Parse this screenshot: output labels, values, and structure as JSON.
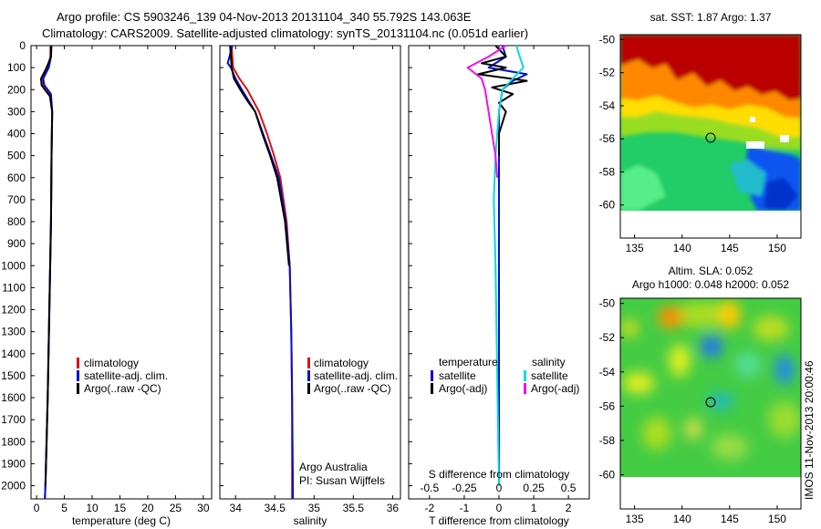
{
  "title_line1": "Argo profile: CS 5903246_139 04-Nov-2013 20131104_340 55.792S 143.063E",
  "title_line2": "Climatology: CARS2009. Satellite-adjusted climatology: synTS_20131104.nc (0.051d earlier)",
  "credit_line1": "Argo Australia",
  "credit_line2": "PI: Susan Wijffels",
  "side_stamp": "IMOS 11-Nov-2013 20:00:46",
  "colors": {
    "clim": "#dd1111",
    "sat": "#0011cc",
    "argo": "#000000",
    "sat_sal": "#00dddd",
    "argo_sal": "#ee11ee"
  },
  "chart_data": [
    {
      "type": "line",
      "xlabel": "temperature (deg C)",
      "ylabel": "",
      "xlim": [
        -1,
        31.5
      ],
      "ylim": [
        2060,
        0
      ],
      "xticks": [
        0,
        5,
        10,
        15,
        20,
        25,
        30
      ],
      "yticks": [
        0,
        100,
        200,
        300,
        400,
        500,
        600,
        700,
        800,
        900,
        1000,
        1100,
        1200,
        1300,
        1400,
        1500,
        1600,
        1700,
        1800,
        1900,
        2000
      ],
      "legend": [
        "climatology",
        "satellite-adj. clim.",
        "Argo(..raw -QC)"
      ],
      "legend_location": "center-right",
      "series": [
        {
          "name": "climatology",
          "color": "#dd1111",
          "depth": [
            0,
            50,
            100,
            150,
            180,
            220,
            300,
            500,
            800,
            1200,
            1600,
            2000,
            2060
          ],
          "values": [
            2.5,
            2.5,
            2.0,
            1.0,
            1.3,
            2.5,
            2.8,
            2.7,
            2.6,
            2.3,
            2.0,
            1.6,
            1.5
          ]
        },
        {
          "name": "satellite-adj. clim.",
          "color": "#0011cc",
          "depth": [
            0,
            50,
            100,
            150,
            180,
            220,
            300,
            500,
            800,
            1200,
            1600,
            2000,
            2060
          ],
          "values": [
            2.7,
            2.6,
            2.2,
            1.2,
            1.4,
            2.6,
            2.8,
            2.7,
            2.6,
            2.3,
            2.0,
            1.6,
            1.5
          ]
        },
        {
          "name": "Argo(..raw -QC)",
          "color": "#000000",
          "depth": [
            0,
            50,
            100,
            150,
            180,
            200,
            230,
            300,
            500,
            800,
            1200,
            1600,
            2000
          ],
          "values": [
            2.6,
            2.6,
            1.8,
            0.8,
            0.9,
            1.5,
            2.4,
            2.8,
            2.7,
            2.6,
            2.3,
            2.0,
            1.6
          ]
        }
      ]
    },
    {
      "type": "line",
      "xlabel": "salinity",
      "ylabel": "",
      "xlim": [
        33.8,
        36.1
      ],
      "ylim": [
        2060,
        0
      ],
      "xticks": [
        34,
        34.5,
        35,
        35.5,
        36
      ],
      "legend": [
        "climatology",
        "satellite-adj. clim.",
        "Argo(..raw -QC)"
      ],
      "legend_location": "center-right",
      "series": [
        {
          "name": "climatology",
          "color": "#dd1111",
          "depth": [
            0,
            100,
            150,
            200,
            300,
            400,
            500,
            600,
            800,
            1000,
            1300,
            1600,
            2000,
            2060
          ],
          "values": [
            33.95,
            33.97,
            34.05,
            34.15,
            34.3,
            34.4,
            34.49,
            34.57,
            34.65,
            34.69,
            34.71,
            34.72,
            34.72,
            34.72
          ]
        },
        {
          "name": "satellite-adj. clim.",
          "color": "#0011cc",
          "depth": [
            0,
            80,
            100,
            150,
            200,
            300,
            400,
            500,
            600,
            800,
            1000,
            1300,
            1600,
            2000,
            2060
          ],
          "values": [
            33.96,
            33.9,
            33.94,
            34.0,
            34.08,
            34.25,
            34.35,
            34.45,
            34.55,
            34.64,
            34.69,
            34.71,
            34.72,
            34.73,
            34.73
          ]
        },
        {
          "name": "Argo(..raw -QC)",
          "color": "#000000",
          "depth": [
            0,
            100,
            150,
            200,
            250,
            300,
            400,
            500,
            600,
            800,
            1000
          ],
          "values": [
            33.93,
            33.95,
            33.98,
            34.06,
            34.15,
            34.25,
            34.34,
            34.44,
            34.53,
            34.63,
            34.68
          ]
        }
      ]
    },
    {
      "type": "line",
      "xlabel": "T difference from climatology",
      "x2label": "S difference from climatology",
      "xlim": [
        -2.6,
        2.6
      ],
      "ylim": [
        2060,
        0
      ],
      "xticks": [
        -2,
        -1,
        0,
        1,
        2
      ],
      "x2ticks": [
        -0.5,
        -0.25,
        0,
        0.25,
        0.5
      ],
      "x2tick_labels": [
        "-0.5",
        "-0.25",
        "0",
        "0.25",
        "0.5"
      ],
      "legend_left_title": "temperature",
      "legend_right_title": "salinity",
      "legend": [
        "satellite",
        "Argo(-adj)",
        "satellite",
        "Argo(-adj)"
      ],
      "legend_location": "center",
      "series": [
        {
          "name": "satellite",
          "color": "#0011cc",
          "depth": [
            0,
            50,
            100,
            130,
            160,
            200,
            300,
            500,
            800,
            1200,
            2000
          ],
          "values": [
            0.1,
            0.2,
            -0.3,
            0.8,
            0.4,
            0.1,
            0.0,
            0.0,
            0.0,
            0.0,
            0.0
          ]
        },
        {
          "name": "Argo(-adj)",
          "color": "#000000",
          "depth": [
            0,
            50,
            80,
            100,
            130,
            160,
            190,
            220,
            260,
            300,
            400,
            500
          ],
          "values": [
            -0.1,
            0.2,
            -0.5,
            0.2,
            -0.6,
            0.8,
            -0.2,
            0.4,
            0.0,
            0.2,
            0.0,
            0.0
          ]
        },
        {
          "name": "satellite",
          "color": "#00dddd",
          "depth": [
            0,
            50,
            100,
            150,
            200,
            300,
            500,
            700,
            1000,
            1500,
            2000
          ],
          "values": [
            0.5,
            0.6,
            0.7,
            0.4,
            0.1,
            0.0,
            -0.1,
            -0.15,
            -0.1,
            -0.05,
            0.0
          ]
        },
        {
          "name": "Argo(-adj)",
          "color": "#ee11ee",
          "depth": [
            0,
            50,
            100,
            150,
            200,
            300,
            400,
            500,
            600
          ],
          "values": [
            0.2,
            -0.3,
            -0.9,
            -0.5,
            -0.4,
            -0.3,
            -0.2,
            -0.1,
            -0.05
          ]
        }
      ]
    },
    {
      "type": "heatmap",
      "title": "sat. SST: 1.87  Argo: 1.37",
      "xlim": [
        133.5,
        152.5
      ],
      "ylim": [
        -62,
        -49.7
      ],
      "xticks": [
        135,
        140,
        145,
        150
      ],
      "yticks": [
        -50,
        -52,
        -54,
        -56,
        -58,
        -60
      ],
      "marker": {
        "lon": 143.06,
        "lat": -55.79
      }
    },
    {
      "type": "heatmap",
      "title_line1": "Altim. SLA: 0.052",
      "title_line2": "Argo h1000: 0.048  h2000: 0.052",
      "xlim": [
        133.5,
        152.5
      ],
      "ylim": [
        -62,
        -49.7
      ],
      "xticks": [
        135,
        140,
        145,
        150
      ],
      "yticks": [
        -50,
        -52,
        -54,
        -56,
        -58,
        -60
      ],
      "marker": {
        "lon": 143.06,
        "lat": -55.79
      }
    }
  ]
}
